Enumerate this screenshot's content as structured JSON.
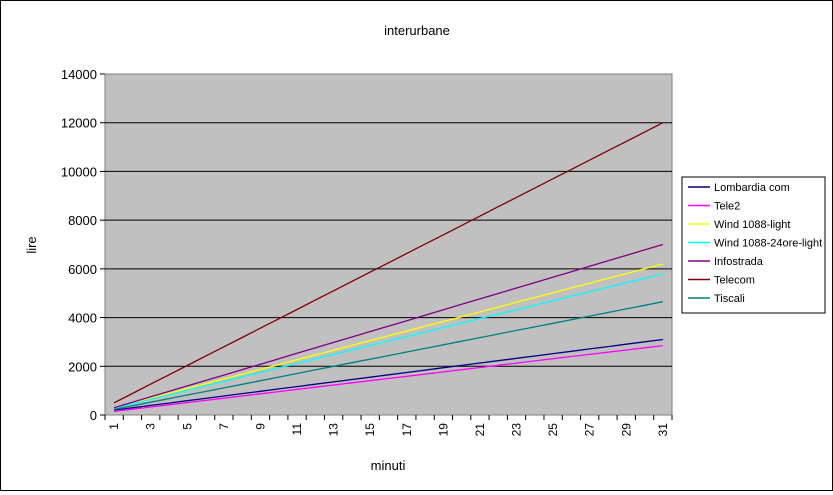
{
  "chart_data": {
    "type": "line",
    "title": "interurbane",
    "xlabel": "minuti",
    "ylabel": "lire",
    "ylim": [
      0,
      14000
    ],
    "yticks": [
      0,
      2000,
      4000,
      6000,
      8000,
      10000,
      12000,
      14000
    ],
    "ytick_labels": [
      "0",
      "2000",
      "4000",
      "6000",
      "8000",
      "10000",
      "12000",
      "14000"
    ],
    "xrange": [
      1,
      31
    ],
    "xtick_labels": [
      "1",
      "3",
      "5",
      "7",
      "9",
      "11",
      "13",
      "15",
      "17",
      "19",
      "21",
      "23",
      "25",
      "27",
      "29",
      "31"
    ],
    "grid": "horizontal",
    "plot_background": "#c0c0c0",
    "legend_position": "right",
    "series": [
      {
        "name": "Lombardia com",
        "color": "#000080",
        "start": 200,
        "end": 3100
      },
      {
        "name": "Tele2",
        "color": "#ff00ff",
        "start": 150,
        "end": 2850
      },
      {
        "name": "Wind 1088-light",
        "color": "#ffff00",
        "start": 300,
        "end": 6200
      },
      {
        "name": "Wind 1088-24ore-light",
        "color": "#00ffff",
        "start": 280,
        "end": 5800
      },
      {
        "name": "Infostrada",
        "color": "#800080",
        "start": 300,
        "end": 7000
      },
      {
        "name": "Telecom",
        "color": "#800000",
        "start": 500,
        "end": 12000
      },
      {
        "name": "Tiscali",
        "color": "#008080",
        "start": 230,
        "end": 4650
      }
    ]
  }
}
